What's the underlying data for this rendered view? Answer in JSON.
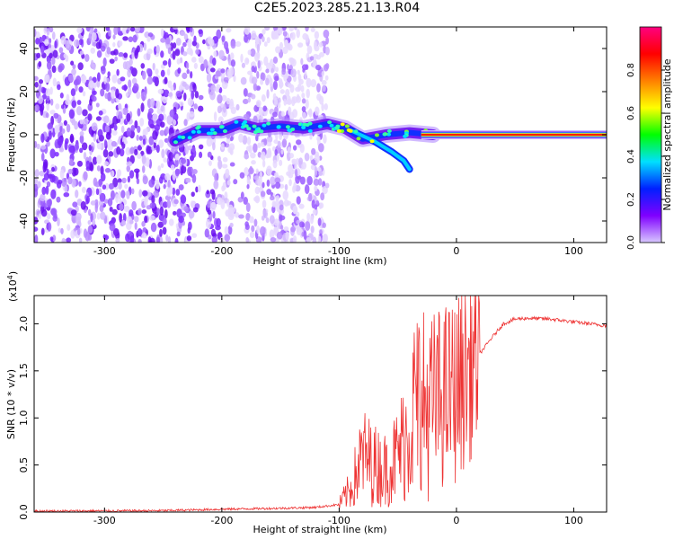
{
  "page": {
    "title": "C2E5.2023.285.21.13.R04"
  },
  "chart_data": [
    {
      "type": "heatmap",
      "xlabel": "Height of straight line (km)",
      "ylabel": "Frequency (Hz)",
      "xlim": [
        -360,
        128
      ],
      "ylim": [
        -50,
        50
      ],
      "xticks": [
        -300,
        -200,
        -100,
        0,
        100
      ],
      "yticks": [
        -40,
        -20,
        0,
        20,
        40
      ],
      "noise_region_x": [
        -360,
        -110
      ],
      "signal_track": [
        {
          "x": -240,
          "y": -3
        },
        {
          "x": -220,
          "y": 2
        },
        {
          "x": -200,
          "y": 2
        },
        {
          "x": -185,
          "y": 5
        },
        {
          "x": -170,
          "y": 3
        },
        {
          "x": -150,
          "y": 4
        },
        {
          "x": -130,
          "y": 3
        },
        {
          "x": -110,
          "y": 5
        },
        {
          "x": -95,
          "y": 3
        },
        {
          "x": -80,
          "y": -2
        },
        {
          "x": -60,
          "y": 0
        },
        {
          "x": -40,
          "y": 1
        },
        {
          "x": -20,
          "y": 0
        },
        {
          "x": 0,
          "y": 0
        },
        {
          "x": 128,
          "y": 0
        }
      ],
      "branch": [
        {
          "x": -90,
          "y": 2
        },
        {
          "x": -70,
          "y": -3
        },
        {
          "x": -55,
          "y": -8
        },
        {
          "x": -45,
          "y": -12
        },
        {
          "x": -40,
          "y": -16
        }
      ],
      "colorbar": {
        "label": "Normalized spectral amplitude",
        "range": [
          0,
          1
        ],
        "ticks": [
          "0.0",
          "0.2",
          "0.4",
          "0.6",
          "0.8"
        ],
        "colors": [
          "#d8c8ff",
          "#7f00ff",
          "#0020ff",
          "#00e0ff",
          "#00ff00",
          "#ffff00",
          "#ff8000",
          "#ff0000",
          "#ff0080"
        ]
      }
    },
    {
      "type": "line",
      "xlabel": "Height of straight line (km)",
      "ylabel": "SNR (10 * v/v)",
      "scale_note": "(x10",
      "scale_exp": "4",
      "scale_close": ")",
      "xlim": [
        -360,
        128
      ],
      "ylim": [
        0,
        2.3
      ],
      "xticks": [
        -300,
        -200,
        -100,
        0,
        100
      ],
      "yticks": [
        "0.0",
        "0.5",
        "1.0",
        "1.5",
        "2.0"
      ],
      "color": "#ee3333",
      "series": [
        {
          "x": [
            -360,
            -250,
            -200,
            -150,
            -120,
            -100,
            -90,
            -80,
            -70,
            -60,
            -50,
            -40,
            -33,
            -25,
            -15,
            0,
            15,
            30,
            40,
            50,
            60,
            80,
            100,
            128
          ],
          "y": [
            0.01,
            0.015,
            0.03,
            0.04,
            0.05,
            0.08,
            0.25,
            0.6,
            0.5,
            0.45,
            0.6,
            0.9,
            1.3,
            1.1,
            1.2,
            1.3,
            1.6,
            1.85,
            2.0,
            2.05,
            2.06,
            2.05,
            2.02,
            1.98
          ]
        }
      ]
    }
  ]
}
